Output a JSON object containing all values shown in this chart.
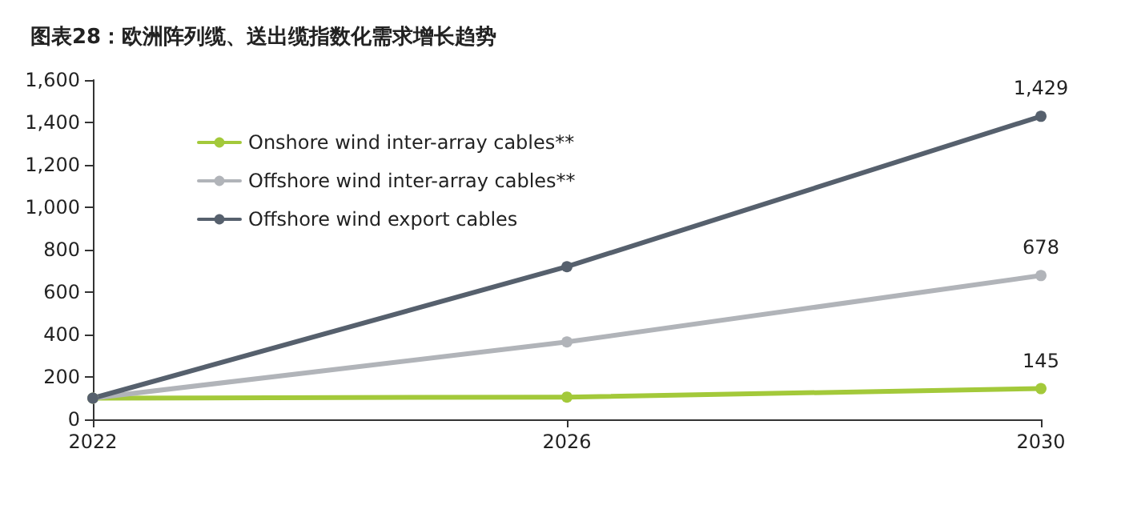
{
  "chart_data": {
    "type": "line",
    "title": "图表28：欧洲阵列缆、送出缆指数化需求增长趋势",
    "x": [
      2022,
      2026,
      2030
    ],
    "xlim": [
      2022,
      2030
    ],
    "xticks": [
      2022,
      2026,
      2030
    ],
    "ylim": [
      0,
      1600
    ],
    "yticks": [
      0,
      200,
      400,
      600,
      800,
      {
        "value": 1000,
        "label": "1,000"
      },
      {
        "value": 1200,
        "label": "1,200"
      },
      {
        "value": 1400,
        "label": "1,400"
      },
      {
        "value": 1600,
        "label": "1,600"
      }
    ],
    "series": [
      {
        "name": "Onshore wind inter-array cables**",
        "color": "#a3c93a",
        "values": [
          100,
          105,
          145
        ],
        "value_labels": [
          null,
          null,
          "145"
        ]
      },
      {
        "name": "Offshore wind inter-array cables**",
        "color": "#b1b4b9",
        "values": [
          100,
          365,
          678
        ],
        "value_labels": [
          null,
          null,
          "678"
        ]
      },
      {
        "name": "Offshore wind export cables",
        "color": "#56606d",
        "values": [
          100,
          720,
          1429
        ],
        "value_labels": [
          null,
          null,
          "1,429"
        ]
      }
    ],
    "grid": false,
    "legend": "top left",
    "marker": "circle",
    "line_style": "solid"
  }
}
